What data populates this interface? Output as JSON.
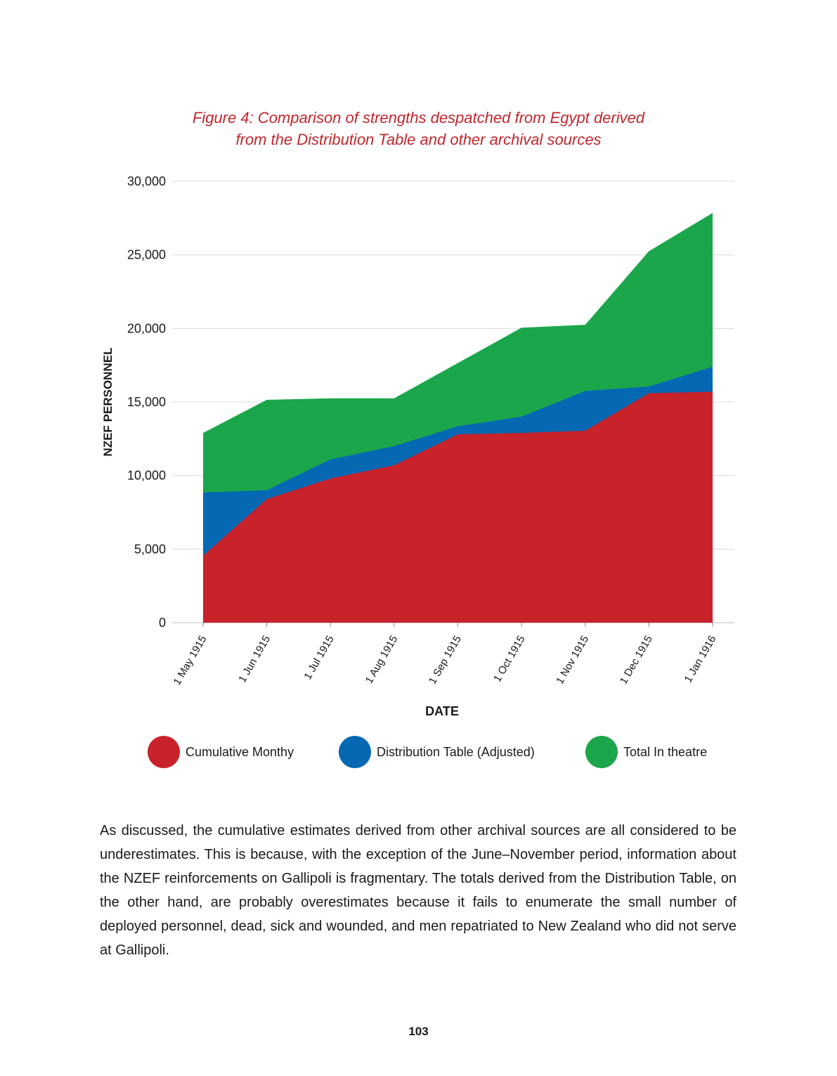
{
  "figure": {
    "title_line1": "Figure 4: Comparison of strengths despatched from Egypt derived",
    "title_line2": "from the Distribution Table and other archival sources"
  },
  "chart_data": {
    "type": "area",
    "xlabel": "DATE",
    "ylabel": "NZEF PERSONNEL",
    "ylim": [
      0,
      30000
    ],
    "yticks": [
      0,
      5000,
      10000,
      15000,
      20000,
      25000,
      30000
    ],
    "ytick_labels": [
      "0",
      "5,000",
      "10,000",
      "15,000",
      "20,000",
      "25,000",
      "30,000"
    ],
    "categories": [
      "1 May 1915",
      "1 Jun 1915",
      "1 Jul 1915",
      "1 Aug 1915",
      "1 Sep 1915",
      "1 Oct 1915",
      "1 Nov 1915",
      "1 Dec 1915",
      "1 Jan 1916"
    ],
    "grid": true,
    "legend_position": "bottom",
    "series": [
      {
        "name": "Total In theatre",
        "color": "#1ca64c",
        "values": [
          12900,
          15150,
          15250,
          15250,
          17650,
          20050,
          20250,
          25250,
          27850
        ]
      },
      {
        "name": "Distribution Table (Adjusted)",
        "color": "#0468b3",
        "values": [
          8850,
          9000,
          11100,
          12000,
          13350,
          14000,
          15750,
          16050,
          17400
        ]
      },
      {
        "name": "Cumulative Monthy",
        "color": "#c8222a",
        "values": [
          4550,
          8400,
          9800,
          10700,
          12800,
          12900,
          13050,
          15600,
          15700
        ]
      }
    ]
  },
  "legend": [
    {
      "label": "Cumulative Monthy",
      "color": "#c8222a"
    },
    {
      "label": "Distribution Table (Adjusted)",
      "color": "#0468b3"
    },
    {
      "label": "Total In theatre",
      "color": "#1ca64c"
    }
  ],
  "body_text": "As discussed, the cumulative estimates derived from other archival sources are all considered to be underestimates. This is because, with the exception of the June–November period, information about the NZEF reinforcements on Gallipoli is fragmentary. The totals derived from the Distribution Table, on the other hand, are probably overestimates because it fails to enumerate the small number of deployed personnel, dead, sick and wounded, and men repatriated to New Zealand who did not serve at Gallipoli.",
  "page_number": "103"
}
